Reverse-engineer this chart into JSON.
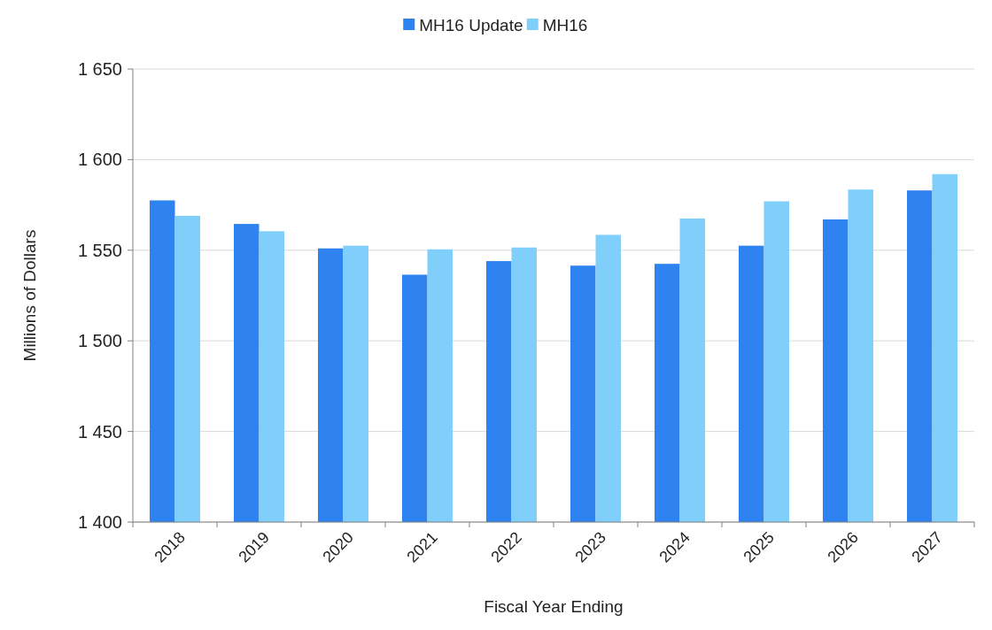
{
  "chart_data": {
    "type": "bar",
    "xlabel": "Fiscal Year Ending",
    "ylabel": "Millions of Dollars",
    "categories": [
      "2018",
      "2019",
      "2020",
      "2021",
      "2022",
      "2023",
      "2024",
      "2025",
      "2026",
      "2027"
    ],
    "series": [
      {
        "name": "MH16 Update",
        "color": "#2e83f0",
        "values": [
          1577.5,
          1564.5,
          1551,
          1536.5,
          1544,
          1541.5,
          1542.5,
          1552.5,
          1567,
          1583
        ]
      },
      {
        "name": "MH16",
        "color": "#80cffa",
        "values": [
          1569,
          1560.5,
          1552.5,
          1550.5,
          1551.5,
          1558.5,
          1567.5,
          1577,
          1583.5,
          1592
        ]
      }
    ],
    "ylim": [
      1400,
      1650
    ],
    "yticks": [
      {
        "value": 1400,
        "label": "1 400"
      },
      {
        "value": 1450,
        "label": "1 450"
      },
      {
        "value": 1500,
        "label": "1 500"
      },
      {
        "value": 1550,
        "label": "1 550"
      },
      {
        "value": 1600,
        "label": "1 600"
      },
      {
        "value": 1650,
        "label": "1 650"
      }
    ],
    "grid": "y",
    "legend": "top"
  }
}
